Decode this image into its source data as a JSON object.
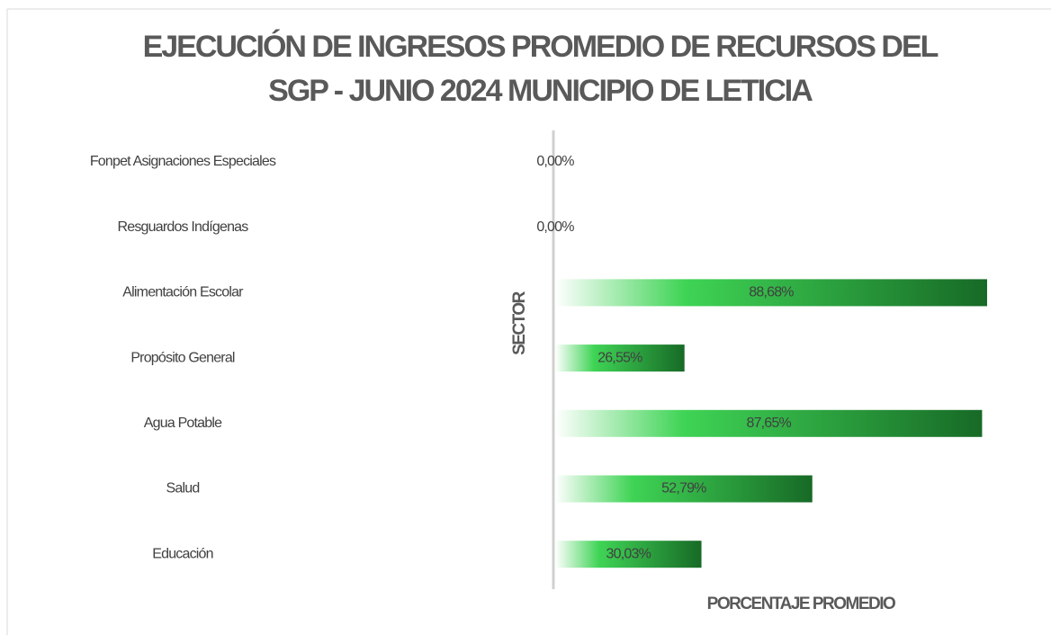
{
  "chart_data": {
    "type": "bar",
    "orientation": "horizontal",
    "title": "EJECUCIÓN DE INGRESOS PROMEDIO DE RECURSOS DEL SGP - JUNIO 2024 MUNICIPIO DE LETICIA",
    "y_label": "SECTOR",
    "x_label": "PORCENTAJE PROMEDIO",
    "categories": [
      "Fonpet Asignaciones Especiales",
      "Resguardos Indígenas",
      "Alimentación Escolar",
      "Propósito General",
      "Agua Potable",
      "Salud",
      "Educación"
    ],
    "values": [
      0,
      0,
      88.68,
      26.55,
      87.65,
      52.79,
      30.03
    ],
    "value_labels": [
      "0,00%",
      "0,00%",
      "88,68%",
      "26,55%",
      "87,65%",
      "52,79%",
      "30,03%"
    ],
    "colors": [
      "#ffffff",
      "#3fd455",
      "#176a26"
    ]
  }
}
